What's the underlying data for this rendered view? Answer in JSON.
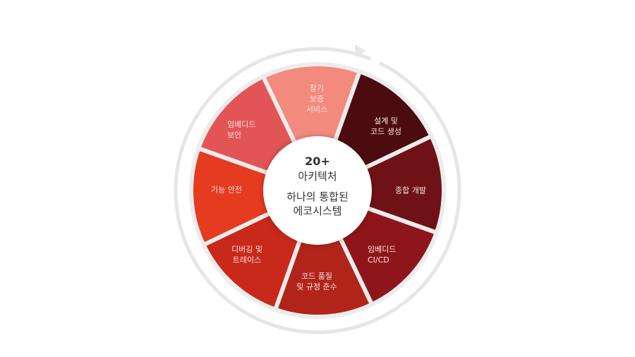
{
  "center": {
    "count": "20+",
    "unit": "아키텍처",
    "description": "하나의 통합된\n에코시스템"
  },
  "segments": [
    {
      "label": "장기\n보증\n서비스",
      "color": "#f28b7d"
    },
    {
      "label": "설계 및\n코드 생성",
      "color": "#4c0c0f"
    },
    {
      "label": "종합 개발",
      "color": "#6f1216"
    },
    {
      "label": "임베디드\nCI/CD",
      "color": "#8e161a"
    },
    {
      "label": "코드 품질\n및 규정 준수",
      "color": "#b1241a"
    },
    {
      "label": "디버깅 및\n트레이스",
      "color": "#c8291b"
    },
    {
      "label": "기능 안전",
      "color": "#e53b21"
    },
    {
      "label": "임베디드\n보안",
      "color": "#e35457"
    }
  ],
  "ring_color": "#e6e6e6",
  "cycle_arrow": "clockwise-arrow-icon"
}
